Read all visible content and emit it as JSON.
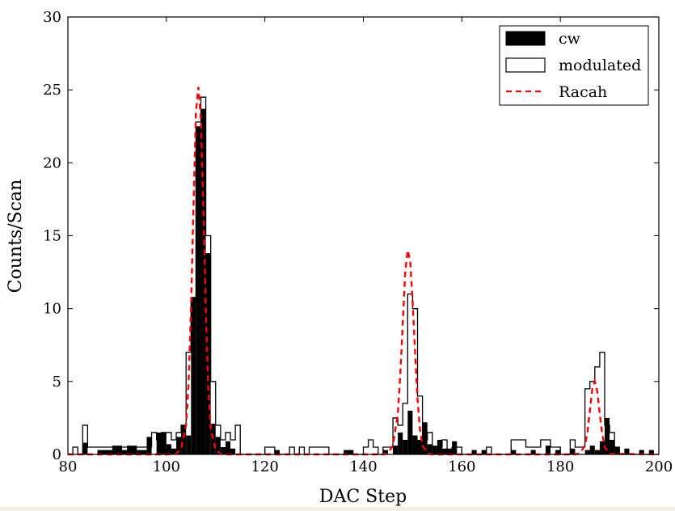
{
  "chart_data": {
    "type": "bar",
    "xlabel": "DAC Step",
    "ylabel": "Counts/Scan",
    "xlim": [
      80,
      200
    ],
    "ylim": [
      0,
      30
    ],
    "xticks": [
      80,
      100,
      120,
      140,
      160,
      180,
      200
    ],
    "yticks": [
      0,
      5,
      10,
      15,
      20,
      25,
      30
    ],
    "grid": false,
    "legend_position": "top-right",
    "series": [
      {
        "name": "cw",
        "style": "filled-step-histogram",
        "color": "#000000",
        "bins": [
          [
            83,
            84,
            0.8
          ],
          [
            86,
            89,
            0.3
          ],
          [
            89,
            91,
            0.6
          ],
          [
            91,
            92,
            0.3
          ],
          [
            92,
            94,
            0.6
          ],
          [
            94,
            96,
            0.3
          ],
          [
            96,
            97,
            1.2
          ],
          [
            98,
            100,
            1.5
          ],
          [
            100,
            101,
            0.7
          ],
          [
            101,
            102,
            0.4
          ],
          [
            102,
            103,
            1.2
          ],
          [
            103,
            104,
            2.0
          ],
          [
            104,
            105,
            1.3
          ],
          [
            105,
            106,
            10.8
          ],
          [
            106,
            107,
            22.5
          ],
          [
            107,
            108,
            23.7
          ],
          [
            108,
            109,
            13.8
          ],
          [
            109,
            110,
            2.1
          ],
          [
            110,
            111,
            1.2
          ],
          [
            111,
            112,
            0.5
          ],
          [
            112,
            113,
            0.9
          ],
          [
            113,
            114,
            0.4
          ],
          [
            122,
            123,
            0.3
          ],
          [
            136,
            138,
            0.3
          ],
          [
            144,
            145,
            0.3
          ],
          [
            146,
            147,
            0.6
          ],
          [
            147,
            148,
            1.5
          ],
          [
            148,
            149,
            1.0
          ],
          [
            149,
            150,
            3.0
          ],
          [
            150,
            151,
            1.3
          ],
          [
            151,
            152,
            1.0
          ],
          [
            152,
            153,
            2.2
          ],
          [
            153,
            154,
            0.7
          ],
          [
            154,
            155,
            0.6
          ],
          [
            155,
            156,
            1.0
          ],
          [
            156,
            157,
            0.4
          ],
          [
            157,
            158,
            0.4
          ],
          [
            158,
            159,
            0.9
          ],
          [
            162,
            163,
            0.3
          ],
          [
            164,
            165,
            0.3
          ],
          [
            170,
            171,
            0.3
          ],
          [
            174,
            175,
            0.3
          ],
          [
            177,
            178,
            0.6
          ],
          [
            179,
            180,
            0.3
          ],
          [
            182,
            183,
            0.4
          ],
          [
            185,
            186,
            0.3
          ],
          [
            186,
            187,
            0.6
          ],
          [
            187,
            188,
            0.3
          ],
          [
            188,
            189,
            0.9
          ],
          [
            189,
            190,
            2.5
          ],
          [
            190,
            191,
            1.0
          ],
          [
            191,
            192,
            0.5
          ],
          [
            193,
            194,
            0.4
          ],
          [
            196,
            197,
            0.3
          ],
          [
            198,
            199,
            0.3
          ]
        ]
      },
      {
        "name": "modulated",
        "style": "outline-step-histogram",
        "color": "#000000",
        "edges": [
          80,
          81,
          82,
          83,
          84,
          86,
          88,
          90,
          92,
          94,
          96,
          97,
          98,
          99,
          100,
          101,
          102,
          103,
          104,
          105,
          106,
          107,
          108,
          109,
          110,
          111,
          112,
          113,
          114,
          115,
          116,
          119,
          120,
          121,
          122,
          123,
          124,
          125,
          126,
          127,
          128,
          129,
          130,
          131,
          132,
          133,
          134,
          135,
          136,
          137,
          138,
          139,
          140,
          141,
          142,
          143,
          144,
          145,
          146,
          147,
          148,
          149,
          150,
          151,
          152,
          153,
          154,
          155,
          156,
          157,
          158,
          159,
          160,
          161,
          162,
          163,
          164,
          165,
          166,
          167,
          168,
          169,
          170,
          171,
          172,
          173,
          174,
          175,
          176,
          177,
          178,
          179,
          180,
          181,
          182,
          183,
          184,
          185,
          186,
          187,
          188,
          189,
          190,
          191,
          192,
          193,
          194,
          195,
          196,
          197,
          198,
          199,
          200
        ],
        "values": [
          0,
          0.5,
          0,
          2.0,
          0.5,
          0.5,
          0.5,
          0.5,
          0.5,
          0.5,
          0.5,
          1.5,
          1.0,
          1.5,
          1.5,
          1.0,
          1.5,
          2.0,
          7.0,
          10.5,
          22.8,
          24.5,
          15.0,
          5.0,
          2.0,
          1.0,
          1.5,
          1.0,
          2.0,
          0,
          0,
          0,
          0.5,
          0.5,
          0,
          0,
          0,
          0.5,
          0,
          0.5,
          0,
          0.5,
          0.5,
          0.5,
          0.5,
          0,
          0,
          0,
          0,
          0,
          0,
          0,
          0.5,
          1.0,
          0.5,
          0,
          0.5,
          0.5,
          2.5,
          2.0,
          3.5,
          11.0,
          10.0,
          4.0,
          1.0,
          1.5,
          0.5,
          0.5,
          1.0,
          0,
          0.5,
          0.5,
          0,
          0,
          0,
          0,
          0,
          0.5,
          0,
          0,
          0,
          0,
          1.0,
          1.0,
          1.0,
          0.5,
          0.5,
          0.5,
          1.0,
          1.0,
          0.5,
          0.5,
          0,
          0,
          1.0,
          0.5,
          0.5,
          4.5,
          5.0,
          6.0,
          7.0,
          2.0,
          1.5,
          0.5,
          0,
          0,
          0,
          0,
          0,
          0,
          0,
          0,
          0
        ]
      },
      {
        "name": "Racah",
        "style": "dashed-line",
        "color": "#ff0000",
        "x": [
          80,
          100,
          102,
          103,
          104,
          104.5,
          105,
          105.5,
          106,
          106.5,
          107,
          107.5,
          108,
          108.5,
          109,
          110,
          111,
          112,
          130,
          144,
          145,
          146,
          147,
          147.5,
          148,
          148.5,
          149,
          149.5,
          150,
          150.5,
          151,
          151.5,
          152,
          153,
          154,
          170,
          183,
          184,
          185,
          185.5,
          186,
          186.5,
          187,
          187.5,
          188,
          188.5,
          189,
          190,
          200
        ],
        "y": [
          0,
          0,
          0.05,
          0.4,
          2.0,
          4.8,
          10.0,
          17.0,
          23.5,
          25.2,
          23.0,
          17.0,
          10.0,
          4.5,
          1.8,
          0.3,
          0.05,
          0,
          0,
          0,
          0.1,
          0.6,
          2.8,
          5.5,
          9.0,
          12.5,
          14.0,
          13.3,
          10.5,
          7.0,
          3.8,
          1.7,
          0.6,
          0.1,
          0,
          0,
          0,
          0.1,
          0.6,
          1.5,
          3.0,
          4.5,
          5.0,
          4.3,
          2.8,
          1.4,
          0.5,
          0.05,
          0
        ]
      }
    ]
  }
}
